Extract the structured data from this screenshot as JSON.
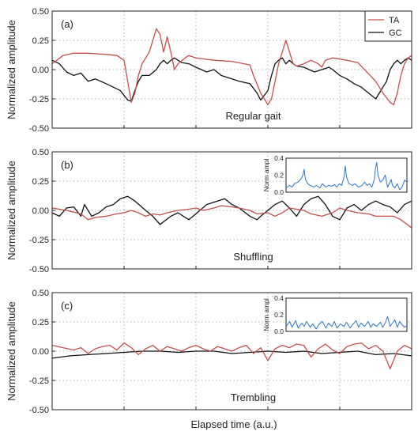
{
  "xlabel": "Elapsed time (a.u.)",
  "colors": {
    "TA": "#c0504d",
    "GC": "#111111",
    "inset": "#2e75c6",
    "grid": "#9a9a9a"
  },
  "chart_data": [
    {
      "type": "line",
      "panel_tag": "(a)",
      "condition": "Regular gait",
      "ylabel": "Normalized amplitude",
      "ylim": [
        -0.5,
        0.5
      ],
      "yticks": [
        "0.50",
        "0.25",
        "0.00",
        "-0.25",
        "-0.50"
      ],
      "xlim": [
        0,
        100
      ],
      "grid": true,
      "legend": {
        "placement": "top-right",
        "entries": [
          "TA",
          "GC"
        ]
      },
      "series": [
        {
          "name": "TA",
          "x": [
            0,
            3,
            6,
            10,
            15,
            18,
            20,
            21,
            22,
            23,
            24,
            25,
            27,
            29,
            30,
            31,
            32,
            33,
            34,
            35,
            37,
            38,
            40,
            45,
            50,
            55,
            56,
            58,
            60,
            61,
            62,
            63,
            64,
            65,
            67,
            68,
            70,
            72,
            74,
            75,
            76,
            78,
            80,
            82,
            85,
            90,
            92,
            94,
            95,
            96,
            97,
            98,
            99,
            100
          ],
          "y": [
            0.05,
            0.12,
            0.14,
            0.14,
            0.13,
            0.12,
            0.08,
            -0.1,
            -0.28,
            -0.2,
            -0.05,
            0.05,
            0.15,
            0.35,
            0.3,
            0.15,
            0.28,
            0.15,
            0.0,
            0.05,
            0.1,
            0.12,
            0.1,
            0.08,
            0.07,
            0.04,
            -0.05,
            -0.2,
            -0.3,
            -0.25,
            -0.1,
            0.05,
            0.15,
            0.25,
            0.05,
            0.03,
            0.05,
            0.08,
            0.05,
            0.02,
            0.08,
            0.1,
            0.09,
            0.08,
            0.06,
            -0.1,
            -0.2,
            -0.28,
            -0.3,
            -0.2,
            -0.05,
            0.05,
            0.1,
            0.12
          ]
        },
        {
          "name": "GC",
          "x": [
            0,
            2,
            4,
            6,
            8,
            10,
            12,
            15,
            17,
            19,
            20,
            21,
            22,
            23,
            24,
            25,
            27,
            29,
            30,
            31,
            32,
            33,
            34,
            35,
            36,
            38,
            40,
            43,
            45,
            47,
            50,
            52,
            55,
            57,
            58,
            60,
            61,
            62,
            63,
            64,
            65,
            66,
            67,
            68,
            70,
            73,
            75,
            77,
            78,
            80,
            82,
            84,
            86,
            88,
            90,
            91,
            92,
            93,
            94,
            95,
            96,
            97,
            98,
            99,
            100
          ],
          "y": [
            0.08,
            0.05,
            -0.02,
            -0.05,
            -0.03,
            -0.1,
            -0.08,
            -0.12,
            -0.15,
            -0.18,
            -0.22,
            -0.26,
            -0.27,
            -0.18,
            -0.1,
            -0.05,
            -0.05,
            0.0,
            0.05,
            0.08,
            0.05,
            0.08,
            0.1,
            0.08,
            0.06,
            0.05,
            0.02,
            -0.02,
            0.0,
            -0.05,
            -0.08,
            -0.1,
            -0.12,
            -0.2,
            -0.26,
            -0.18,
            -0.05,
            0.05,
            0.08,
            0.1,
            0.05,
            0.08,
            0.05,
            0.03,
            0.02,
            -0.02,
            0.0,
            0.02,
            0.0,
            -0.05,
            -0.08,
            -0.12,
            -0.15,
            -0.2,
            -0.25,
            -0.2,
            -0.15,
            -0.1,
            0.0,
            0.05,
            0.08,
            0.05,
            0.08,
            0.1,
            0.08
          ]
        }
      ]
    },
    {
      "type": "line",
      "panel_tag": "(b)",
      "condition": "Shuffling",
      "ylabel": "Normalized amplitude",
      "ylim": [
        -0.5,
        0.5
      ],
      "yticks": [
        "0.50",
        "0.25",
        "0.00",
        "-0.25",
        "-0.50"
      ],
      "xlim": [
        0,
        100
      ],
      "grid": true,
      "series": [
        {
          "name": "TA",
          "x": [
            0,
            4,
            8,
            10,
            12,
            15,
            18,
            20,
            22,
            24,
            26,
            28,
            30,
            32,
            35,
            38,
            40,
            42,
            45,
            47,
            50,
            52,
            55,
            57,
            60,
            62,
            64,
            66,
            70,
            72,
            75,
            78,
            80,
            82,
            85,
            88,
            90,
            92,
            95,
            97,
            100
          ],
          "y": [
            0.02,
            0.0,
            -0.03,
            -0.08,
            -0.06,
            -0.05,
            -0.03,
            -0.02,
            0.0,
            -0.02,
            -0.05,
            -0.03,
            -0.04,
            -0.02,
            0.0,
            0.01,
            0.02,
            0.0,
            0.02,
            0.04,
            0.03,
            0.02,
            0.0,
            -0.03,
            -0.02,
            -0.05,
            -0.02,
            0.02,
            0.0,
            -0.03,
            -0.05,
            -0.02,
            0.02,
            0.0,
            -0.02,
            -0.03,
            -0.05,
            -0.05,
            -0.05,
            -0.08,
            -0.15
          ]
        },
        {
          "name": "GC",
          "x": [
            0,
            2,
            4,
            6,
            8,
            9,
            11,
            13,
            15,
            17,
            19,
            21,
            23,
            26,
            28,
            30,
            33,
            35,
            38,
            40,
            43,
            46,
            48,
            50,
            52,
            55,
            57,
            58,
            60,
            62,
            64,
            66,
            68,
            70,
            72,
            74,
            76,
            78,
            80,
            82,
            84,
            86,
            88,
            90,
            92,
            94,
            96,
            98,
            100
          ],
          "y": [
            -0.02,
            -0.05,
            0.02,
            0.03,
            -0.05,
            0.05,
            -0.05,
            -0.02,
            0.03,
            0.05,
            0.1,
            0.12,
            0.08,
            0.0,
            -0.05,
            -0.12,
            -0.05,
            -0.02,
            -0.08,
            -0.03,
            0.05,
            0.08,
            0.1,
            0.05,
            0.02,
            -0.05,
            -0.08,
            -0.05,
            0.0,
            0.05,
            0.08,
            0.02,
            -0.05,
            0.05,
            0.1,
            0.12,
            0.05,
            -0.05,
            -0.08,
            0.02,
            0.05,
            0.0,
            0.05,
            0.08,
            0.05,
            0.03,
            -0.02,
            0.05,
            0.08
          ]
        }
      ],
      "inset": {
        "ylabel": "Norm ampl",
        "ylim": [
          0.0,
          0.4
        ],
        "yticks": [
          "0.4",
          "0.2",
          "0.0"
        ],
        "x": [
          0,
          3,
          5,
          7,
          10,
          12,
          14,
          15,
          16,
          18,
          20,
          23,
          25,
          28,
          30,
          33,
          35,
          38,
          40,
          42,
          44,
          46,
          48,
          49,
          50,
          52,
          55,
          57,
          60,
          63,
          65,
          67,
          69,
          71,
          73,
          74,
          75,
          76,
          78,
          80,
          82,
          84,
          86,
          87,
          88,
          90,
          92,
          94,
          96,
          98,
          100
        ],
        "y": [
          0.05,
          0.08,
          0.06,
          0.1,
          0.12,
          0.15,
          0.2,
          0.27,
          0.15,
          0.1,
          0.08,
          0.06,
          0.08,
          0.05,
          0.1,
          0.06,
          0.08,
          0.07,
          0.09,
          0.06,
          0.1,
          0.08,
          0.18,
          0.31,
          0.18,
          0.1,
          0.08,
          0.1,
          0.06,
          0.08,
          0.12,
          0.08,
          0.1,
          0.06,
          0.15,
          0.28,
          0.35,
          0.2,
          0.12,
          0.14,
          0.2,
          0.06,
          0.12,
          0.15,
          0.08,
          0.05,
          0.1,
          0.03,
          0.06,
          0.14,
          0.12
        ]
      }
    },
    {
      "type": "line",
      "panel_tag": "(c)",
      "condition": "Trembling",
      "ylabel": "Normalized amplitude",
      "ylim": [
        -0.5,
        0.5
      ],
      "yticks": [
        "0.50",
        "0.25",
        "0.00",
        "-0.25",
        "-0.50"
      ],
      "xlim": [
        0,
        100
      ],
      "grid": true,
      "series": [
        {
          "name": "TA",
          "x": [
            0,
            3,
            6,
            8,
            10,
            12,
            14,
            16,
            18,
            20,
            22,
            24,
            26,
            28,
            30,
            32,
            34,
            36,
            38,
            40,
            42,
            44,
            46,
            48,
            50,
            52,
            54,
            56,
            58,
            60,
            62,
            64,
            66,
            68,
            70,
            72,
            74,
            76,
            78,
            80,
            82,
            84,
            86,
            88,
            90,
            92,
            94,
            96,
            98,
            100
          ],
          "y": [
            0.05,
            0.03,
            0.01,
            0.03,
            -0.02,
            0.02,
            0.04,
            0.05,
            0.01,
            0.07,
            0.03,
            -0.03,
            0.02,
            0.05,
            0.0,
            0.04,
            0.02,
            0.0,
            0.03,
            0.05,
            0.02,
            0.0,
            0.04,
            0.02,
            0.0,
            0.03,
            0.05,
            -0.02,
            0.03,
            -0.08,
            0.02,
            0.05,
            0.03,
            0.06,
            0.05,
            -0.05,
            0.02,
            0.06,
            0.01,
            -0.02,
            0.04,
            0.06,
            0.07,
            0.02,
            0.05,
            0.0,
            -0.15,
            0.0,
            0.05,
            0.02
          ]
        },
        {
          "name": "GC",
          "x": [
            0,
            5,
            10,
            15,
            20,
            25,
            30,
            35,
            40,
            45,
            50,
            55,
            60,
            65,
            70,
            75,
            80,
            85,
            90,
            95,
            100
          ],
          "y": [
            -0.06,
            -0.04,
            -0.03,
            -0.02,
            -0.01,
            0.0,
            0.0,
            -0.01,
            0.0,
            0.0,
            -0.02,
            -0.01,
            0.0,
            -0.01,
            0.0,
            -0.02,
            -0.01,
            0.0,
            -0.03,
            -0.02,
            -0.04
          ]
        }
      ],
      "inset": {
        "ylabel": "Norm ampl",
        "ylim": [
          0.0,
          0.4
        ],
        "yticks": [
          "0.4",
          "0.2",
          "0.0"
        ],
        "x": [
          0,
          3,
          5,
          8,
          10,
          13,
          15,
          17,
          20,
          22,
          25,
          27,
          30,
          33,
          35,
          38,
          40,
          42,
          45,
          48,
          50,
          53,
          55,
          58,
          60,
          62,
          65,
          68,
          70,
          72,
          75,
          78,
          80,
          82,
          84,
          86,
          88,
          90,
          92,
          94,
          96,
          98,
          100
        ],
        "y": [
          0.06,
          0.12,
          0.05,
          0.13,
          0.04,
          0.1,
          0.06,
          0.12,
          0.05,
          0.09,
          0.03,
          0.08,
          0.12,
          0.04,
          0.1,
          0.06,
          0.12,
          0.04,
          0.09,
          0.06,
          0.11,
          0.04,
          0.08,
          0.13,
          0.05,
          0.1,
          0.06,
          0.12,
          0.05,
          0.09,
          0.06,
          0.11,
          0.05,
          0.1,
          0.18,
          0.06,
          0.1,
          0.14,
          0.05,
          0.12,
          0.08,
          0.05,
          0.07
        ]
      }
    }
  ]
}
